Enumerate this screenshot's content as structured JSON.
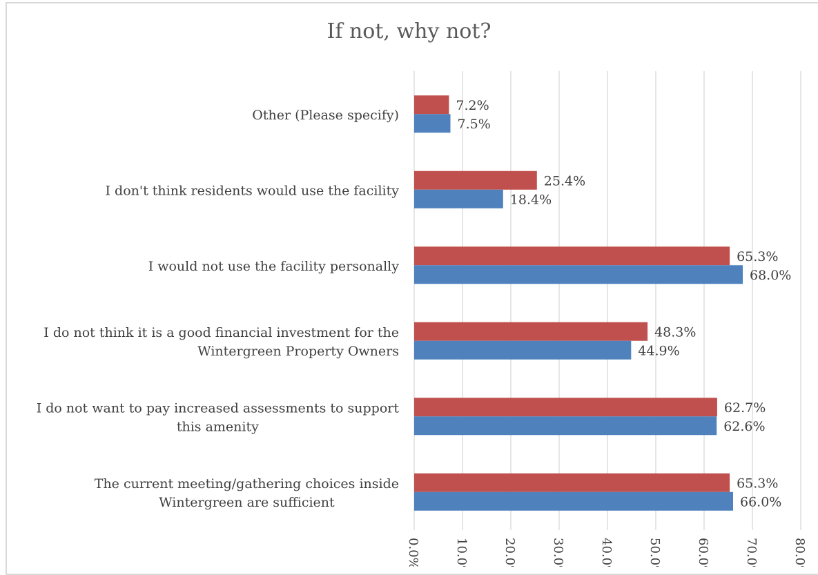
{
  "chart_data": {
    "type": "bar",
    "orientation": "horizontal",
    "title": "If not, why not?",
    "categories": [
      [
        "Other (Please specify)"
      ],
      [
        "I don't think residents would use the facility"
      ],
      [
        "I would not use the facility personally"
      ],
      [
        "I do not think it is a good financial investment for the",
        "Wintergreen Property Owners"
      ],
      [
        "I do not want to pay increased assessments to support",
        "this amenity"
      ],
      [
        "The current meeting/gathering choices inside",
        "Wintergreen are sufficient"
      ]
    ],
    "series": [
      {
        "color": "#c0504d",
        "values": [
          7.2,
          25.4,
          65.3,
          48.3,
          62.7,
          65.3
        ],
        "labels": [
          "7.2%",
          "25.4%",
          "65.3%",
          "48.3%",
          "62.7%",
          "65.3%"
        ]
      },
      {
        "color": "#4f81bd",
        "values": [
          7.5,
          18.4,
          68.0,
          44.9,
          62.6,
          66.0
        ],
        "labels": [
          "7.5%",
          "18.4%",
          "68.0%",
          "44.9%",
          "62.6%",
          "66.0%"
        ]
      }
    ],
    "x_ticks": [
      "0.0%",
      "10.0%",
      "20.0%",
      "30.0%",
      "40.0%",
      "50.0%",
      "60.0%",
      "70.0%",
      "80.0%"
    ],
    "xlim": [
      0,
      80
    ],
    "grid": true,
    "legend": "none"
  }
}
